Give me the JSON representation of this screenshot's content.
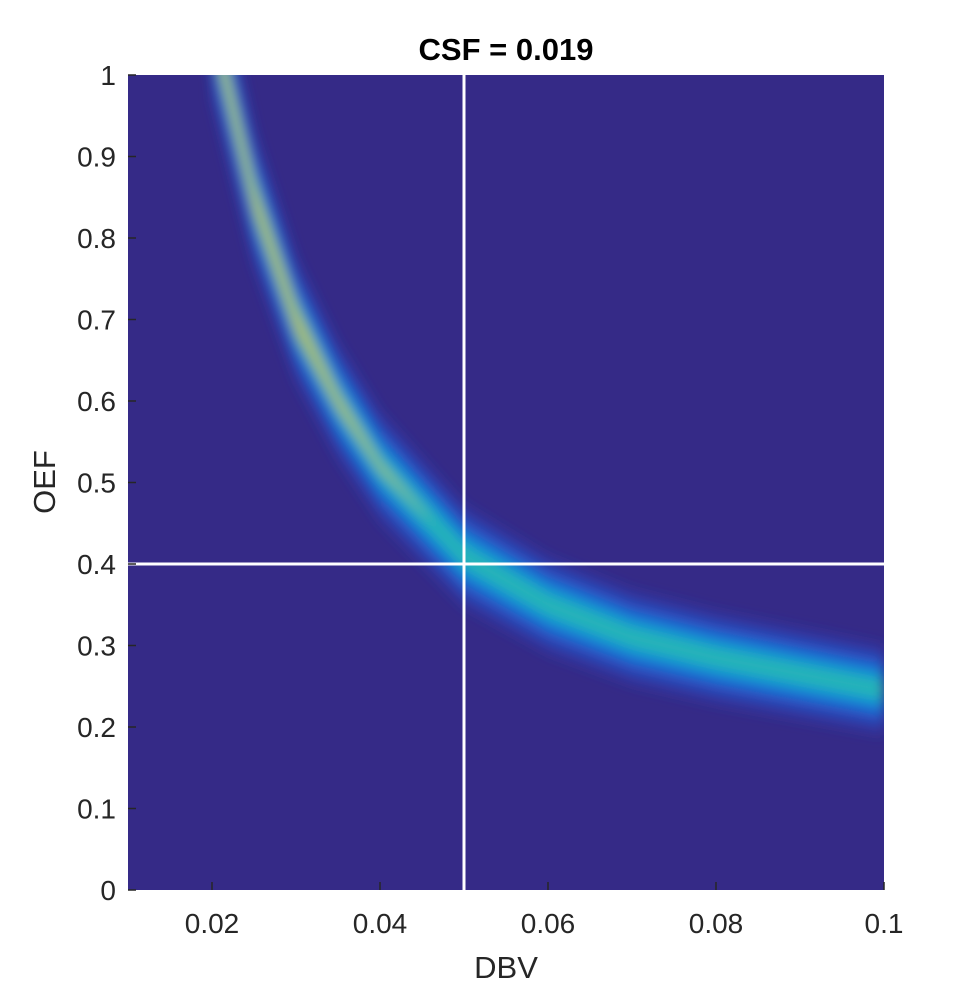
{
  "chart_data": {
    "type": "heatmap",
    "title": "CSF = 0.019",
    "xlabel": "DBV",
    "ylabel": "OEF",
    "xlim": [
      0.01,
      0.1
    ],
    "ylim": [
      0,
      1
    ],
    "xticks": [
      0.02,
      0.04,
      0.06,
      0.08,
      0.1
    ],
    "xtick_labels": [
      "0.02",
      "0.04",
      "0.06",
      "0.08",
      "0.1"
    ],
    "yticks": [
      0,
      0.1,
      0.2,
      0.3,
      0.4,
      0.5,
      0.6,
      0.7,
      0.8,
      0.9,
      1
    ],
    "ytick_labels": [
      "0",
      "0.1",
      "0.2",
      "0.3",
      "0.4",
      "0.5",
      "0.6",
      "0.7",
      "0.8",
      "0.9",
      "1"
    ],
    "colormap": "parula",
    "background_color": "#352a87",
    "ridge": {
      "description": "high-likelihood band along OEF x DBV approximately constant",
      "points": [
        {
          "dbv": 0.0215,
          "oef": 1.0
        },
        {
          "dbv": 0.025,
          "oef": 0.85
        },
        {
          "dbv": 0.03,
          "oef": 0.7
        },
        {
          "dbv": 0.035,
          "oef": 0.6
        },
        {
          "dbv": 0.04,
          "oef": 0.52
        },
        {
          "dbv": 0.05,
          "oef": 0.41
        },
        {
          "dbv": 0.06,
          "oef": 0.35
        },
        {
          "dbv": 0.07,
          "oef": 0.31
        },
        {
          "dbv": 0.08,
          "oef": 0.285
        },
        {
          "dbv": 0.09,
          "oef": 0.265
        },
        {
          "dbv": 0.1,
          "oef": 0.245
        }
      ],
      "peak_region": {
        "dbv_range": [
          0.02,
          0.035
        ],
        "oef_range": [
          0.6,
          1.0
        ]
      }
    },
    "reference_lines": {
      "vertical_dbv": 0.05,
      "horizontal_oef": 0.4,
      "color": "#ffffff"
    },
    "grid": false
  }
}
